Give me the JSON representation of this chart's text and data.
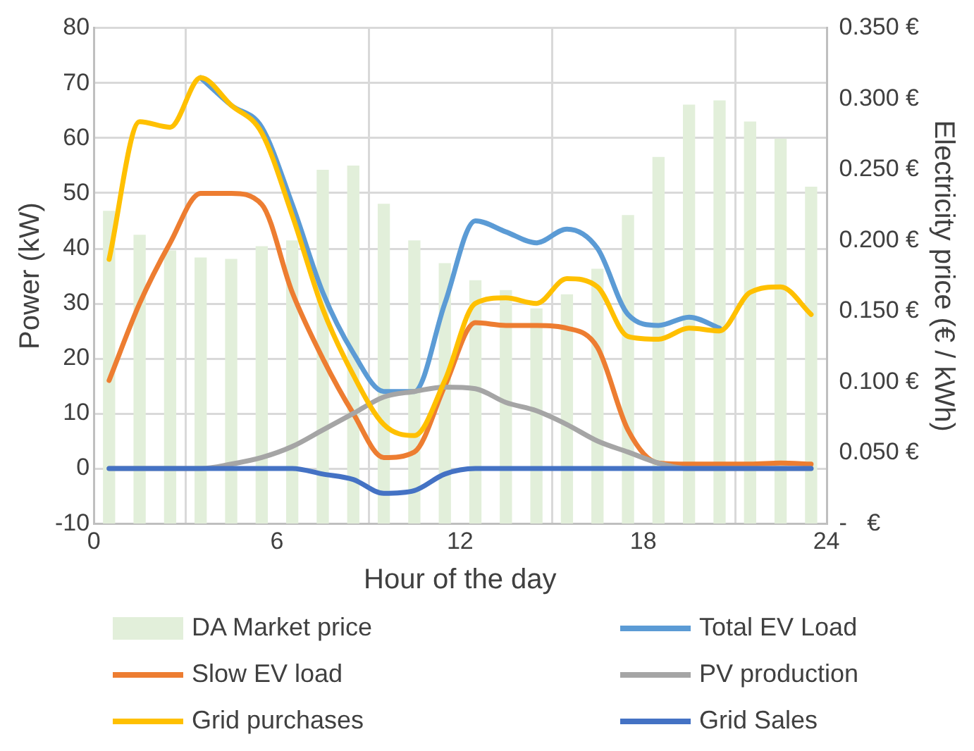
{
  "chart_data": {
    "type": "line",
    "xlabel": "Hour of the day",
    "ylabel": "Power (kW)",
    "y2label": "Electricity price (€ / kWh)",
    "x": [
      0.5,
      1.5,
      2.5,
      3.5,
      4.5,
      5.5,
      6.5,
      7.5,
      8.5,
      9.5,
      10.5,
      11.5,
      12.5,
      13.5,
      14.5,
      15.5,
      16.5,
      17.5,
      18.5,
      19.5,
      20.5,
      21.5,
      22.5,
      23.5
    ],
    "xlim": [
      0,
      24
    ],
    "xticks": [
      0,
      6,
      12,
      18,
      24
    ],
    "ylim": [
      -10,
      80
    ],
    "yticks": [
      -10,
      0,
      10,
      20,
      30,
      40,
      50,
      60,
      70,
      80
    ],
    "y2lim": [
      0,
      0.35
    ],
    "y2ticks": [
      {
        "value": 0,
        "label": "-   €"
      },
      {
        "value": 0.05,
        "label": "0.050 €"
      },
      {
        "value": 0.1,
        "label": "0.100 €"
      },
      {
        "value": 0.15,
        "label": "0.150 €"
      },
      {
        "value": 0.2,
        "label": "0.200 €"
      },
      {
        "value": 0.25,
        "label": "0.250 €"
      },
      {
        "value": 0.3,
        "label": "0.300 €"
      },
      {
        "value": 0.35,
        "label": "0.350 €"
      }
    ],
    "grid": true,
    "legend": "bottom",
    "marker": "none",
    "line_style": "solid",
    "series": [
      {
        "name": "DA Market price",
        "type": "bar",
        "axis": "y2",
        "color": "#e2efda",
        "values": [
          0.221,
          0.204,
          0.193,
          0.188,
          0.187,
          0.196,
          0.2,
          0.25,
          0.253,
          0.226,
          0.2,
          0.184,
          0.172,
          0.165,
          0.152,
          0.162,
          0.18,
          0.218,
          0.259,
          0.296,
          0.299,
          0.284,
          0.272,
          0.238
        ]
      },
      {
        "name": "Total EV Load",
        "color": "#5b9bd5",
        "values": [
          null,
          null,
          null,
          71,
          66,
          62,
          48,
          32,
          21,
          14,
          14,
          30,
          45,
          43,
          41,
          43.5,
          40,
          28,
          26,
          27.5,
          25.5,
          null,
          null,
          null
        ]
      },
      {
        "name": "Slow EV load",
        "color": "#ed7d31",
        "values": [
          16,
          30,
          41,
          50,
          50,
          48,
          32,
          20,
          10,
          2,
          3,
          15,
          26.5,
          26,
          26,
          25.5,
          22,
          7,
          1,
          0.8,
          0.8,
          0.8,
          1,
          0.8
        ]
      },
      {
        "name": "PV production",
        "color": "#a5a5a5",
        "values": [
          0,
          0,
          0,
          0,
          0.8,
          2,
          4,
          7,
          10,
          13,
          14,
          14.8,
          14.5,
          12,
          10.5,
          8,
          5,
          3,
          1,
          0,
          0,
          0,
          0,
          0
        ]
      },
      {
        "name": "Grid purchases",
        "color": "#ffc000",
        "values": [
          38,
          63,
          62,
          71,
          66,
          61,
          46,
          29,
          17,
          8,
          6,
          16,
          30,
          31,
          30,
          34.5,
          33,
          24,
          23.5,
          25.5,
          25,
          32,
          33,
          28
        ]
      },
      {
        "name": "Grid Sales",
        "color": "#4472c4",
        "values": [
          0,
          0,
          0,
          0,
          0,
          0,
          0,
          -1,
          -2,
          -4.5,
          -4,
          -1,
          0,
          0,
          0,
          0,
          0,
          0,
          0,
          0,
          0,
          0,
          0,
          0
        ]
      }
    ]
  }
}
